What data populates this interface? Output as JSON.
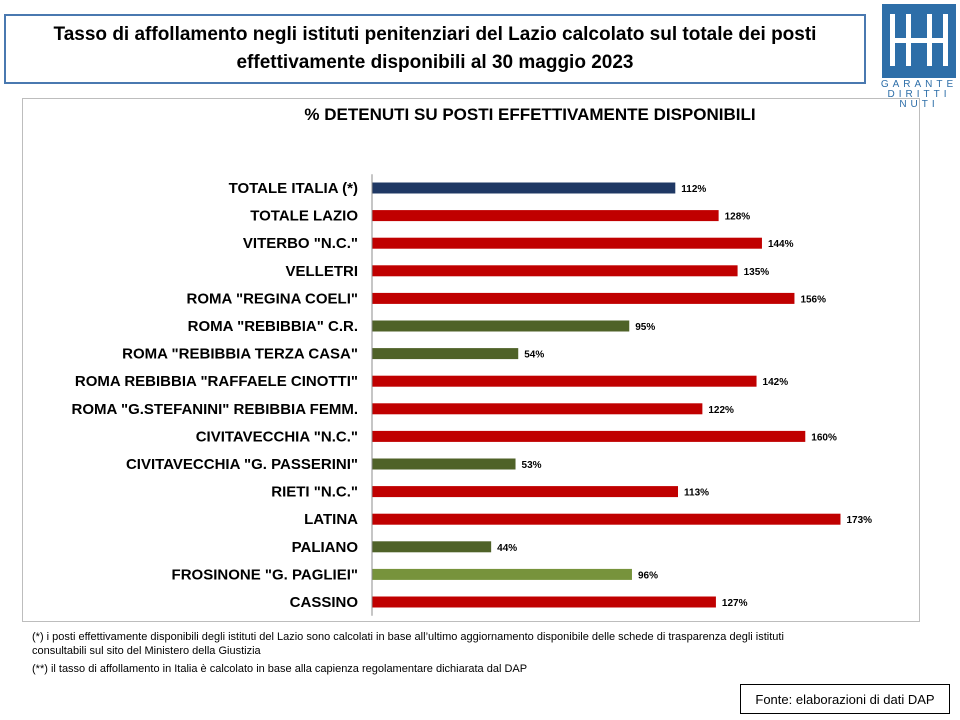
{
  "header": {
    "title_line1": "Tasso di affollamento negli istituti penitenziari del Lazio calcolato sul totale dei posti",
    "title_line2": "effettivamente disponibili al 30 maggio 2023"
  },
  "logo": {
    "text_line1": "GARANTE",
    "text_line2": "DIRITTI",
    "text_line3": "NUTI",
    "color": "#2d6ea8"
  },
  "chart_data": {
    "type": "bar",
    "orientation": "horizontal",
    "title": "% DETENUTI SU POSTI EFFETTIVAMENTE DISPONIBILI",
    "categories": [
      "TOTALE ITALIA (*)",
      "TOTALE LAZIO",
      "VITERBO \"N.C.\"",
      "VELLETRI",
      "ROMA \"REGINA COELI\"",
      "ROMA \"REBIBBIA\" C.R.",
      "ROMA \"REBIBBIA TERZA CASA\"",
      "ROMA REBIBBIA \"RAFFAELE CINOTTI\"",
      "ROMA \"G.STEFANINI\" REBIBBIA FEMM.",
      "CIVITAVECCHIA \"N.C.\"",
      "CIVITAVECCHIA \"G. PASSERINI\"",
      "RIETI \"N.C.\"",
      "LATINA",
      "PALIANO",
      "FROSINONE \"G. PAGLIEI\"",
      "CASSINO"
    ],
    "values": [
      112,
      128,
      144,
      135,
      156,
      95,
      54,
      142,
      122,
      160,
      53,
      113,
      173,
      44,
      96,
      127
    ],
    "value_labels": [
      "112%",
      "128%",
      "144%",
      "135%",
      "156%",
      "95%",
      "54%",
      "142%",
      "122%",
      "160%",
      "53%",
      "113%",
      "173%",
      "44%",
      "96%",
      "127%"
    ],
    "bar_colors": [
      "#1f3864",
      "#c00000",
      "#c00000",
      "#c00000",
      "#c00000",
      "#4f6228",
      "#4f6228",
      "#c00000",
      "#c00000",
      "#c00000",
      "#4f6228",
      "#c00000",
      "#c00000",
      "#4f6228",
      "#77933c",
      "#c00000"
    ],
    "xlim": [
      0,
      180
    ],
    "grid": false,
    "legend": "none"
  },
  "footnotes": {
    "note1_line1": "(*) i posti effettivamente disponibili  degli istituti del Lazio sono calcolati in base all’ultimo aggiornamento disponibile  delle schede  di trasparenza degli istituti",
    "note1_line2": "consultabili sul sito del Ministero della Giustizia",
    "note2": "(**) il tasso di affollamento in Italia è calcolato in base alla capienza regolamentare dichiarata dal DAP"
  },
  "source": "Fonte: elaborazioni di dati DAP"
}
